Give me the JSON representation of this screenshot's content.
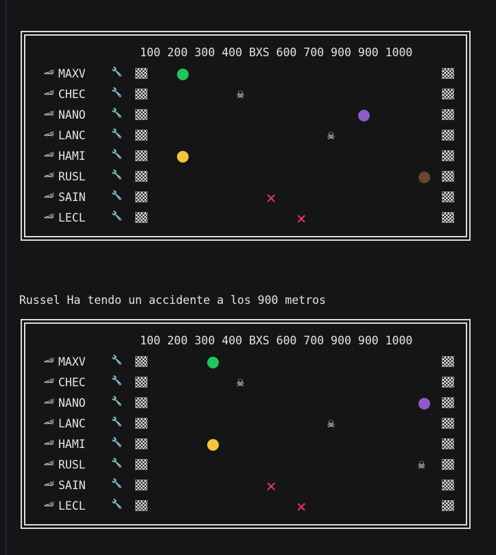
{
  "header": "100 200 300 400 BXS 600 700 900 900 1000",
  "message": "Russel Ha tendo un accidente a los 900 metros",
  "icons": {
    "car": "racecar-icon",
    "wrench": "wrench-icon",
    "flag": "checkered-flag-icon",
    "dead": "skull-icon",
    "out": "red-x-icon"
  },
  "status_colors": {
    "green": "#1fc45a",
    "purple": "#8e5bc6",
    "yellow": "#f3c63d",
    "brown": "#6b4433",
    "red": "#ef3b5e"
  },
  "race_before": {
    "drivers": [
      {
        "name": "MAXV",
        "state": "running",
        "color": "#1fc45a",
        "distance": 100
      },
      {
        "name": "CHEC",
        "state": "dead",
        "distance": 300
      },
      {
        "name": "NANO",
        "state": "running",
        "color": "#8e5bc6",
        "distance": 700
      },
      {
        "name": "LANC",
        "state": "dead",
        "distance": 600
      },
      {
        "name": "HAMI",
        "state": "running",
        "color": "#f3c63d",
        "distance": 100
      },
      {
        "name": "RUSL",
        "state": "running",
        "color": "#6b4433",
        "distance": 900
      },
      {
        "name": "SAIN",
        "state": "out",
        "distance": 400
      },
      {
        "name": "LECL",
        "state": "out",
        "distance": 500
      }
    ]
  },
  "race_after": {
    "drivers": [
      {
        "name": "MAXV",
        "state": "running",
        "color": "#1fc45a",
        "distance": 200
      },
      {
        "name": "CHEC",
        "state": "dead",
        "distance": 300
      },
      {
        "name": "NANO",
        "state": "running",
        "color": "#8e5bc6",
        "distance": 900
      },
      {
        "name": "LANC",
        "state": "dead",
        "distance": 600
      },
      {
        "name": "HAMI",
        "state": "running",
        "color": "#f3c63d",
        "distance": 200
      },
      {
        "name": "RUSL",
        "state": "dead",
        "distance": 900
      },
      {
        "name": "SAIN",
        "state": "out",
        "distance": 400
      },
      {
        "name": "LECL",
        "state": "out",
        "distance": 500
      }
    ]
  }
}
